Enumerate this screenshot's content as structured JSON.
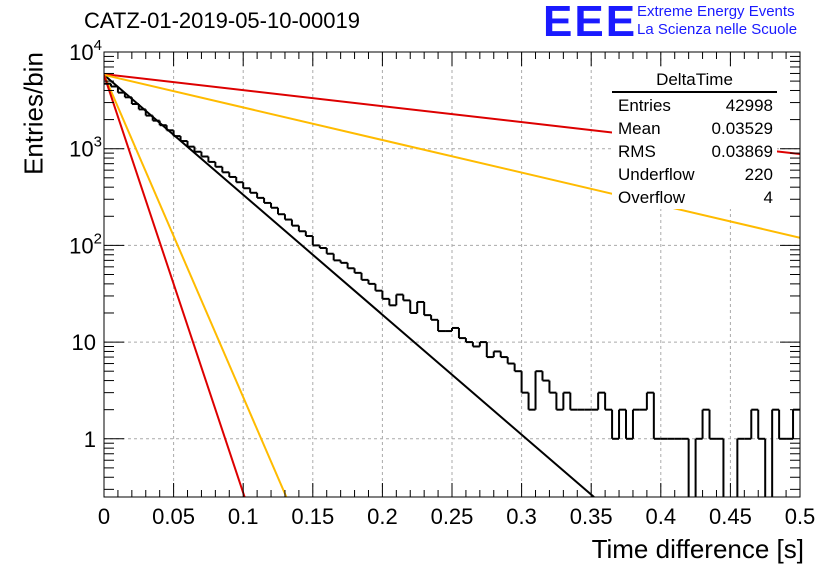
{
  "title": "CATZ-01-2019-05-10-00019",
  "logo": {
    "mark": "EEE",
    "line1": "Extreme Energy Events",
    "line2": "La Scienza nelle Scuole",
    "color": "#1a1aff"
  },
  "axes": {
    "xlabel": "Time difference [s]",
    "ylabel": "Entries/bin"
  },
  "stats": {
    "title": "DeltaTime",
    "rows": [
      {
        "label": "Entries",
        "value": "42998"
      },
      {
        "label": "Mean",
        "value": "0.03529"
      },
      {
        "label": "RMS",
        "value": "0.03869"
      },
      {
        "label": "Underflow",
        "value": "220"
      },
      {
        "label": "Overflow",
        "value": "4"
      }
    ]
  },
  "chart_data": {
    "type": "line",
    "xlim": [
      0,
      0.5
    ],
    "ylim": [
      0.25,
      10000
    ],
    "yscale": "log",
    "grid": true,
    "x_ticks": [
      "0",
      "0.05",
      "0.1",
      "0.15",
      "0.2",
      "0.25",
      "0.3",
      "0.35",
      "0.4",
      "0.45",
      "0.5"
    ],
    "y_ticks": [
      {
        "value": 1,
        "label": "1"
      },
      {
        "value": 10,
        "label": "10"
      },
      {
        "value": 100,
        "label": "10^2"
      },
      {
        "value": 1000,
        "label": "10^3"
      },
      {
        "value": 10000,
        "label": "10^4"
      }
    ],
    "histogram": {
      "name": "DeltaTime",
      "bin_width": 0.005,
      "x_start": 0,
      "color": "#000000",
      "counts": [
        4700,
        4400,
        3800,
        3400,
        2900,
        2550,
        2200,
        1950,
        1750,
        1550,
        1350,
        1200,
        1050,
        930,
        830,
        730,
        650,
        570,
        510,
        450,
        390,
        350,
        310,
        275,
        245,
        210,
        185,
        160,
        140,
        125,
        100,
        94,
        82,
        70,
        66,
        58,
        52,
        44,
        40,
        34,
        28,
        24,
        31,
        27,
        20,
        26,
        19,
        17,
        13,
        13,
        14,
        11,
        10,
        9,
        10,
        7,
        8,
        7,
        6,
        5,
        3,
        2,
        5,
        4,
        3,
        2,
        3,
        2,
        2,
        2,
        2,
        3,
        2,
        1,
        2,
        1,
        2,
        2,
        3,
        1,
        1,
        1,
        1,
        1,
        0,
        1,
        2,
        1,
        1,
        0,
        0,
        1,
        1,
        2,
        1,
        0,
        2,
        1,
        1,
        2
      ]
    },
    "series": [
      {
        "color": "#000000",
        "x": [
          0,
          0.352
        ],
        "y": [
          5800,
          0.25
        ]
      },
      {
        "color": "#dd0000",
        "x": [
          0,
          0.5
        ],
        "y": [
          5900,
          880
        ]
      },
      {
        "color": "#ffbb00",
        "x": [
          0,
          0.5
        ],
        "y": [
          5800,
          120
        ]
      },
      {
        "color": "#ffbb00",
        "x": [
          0,
          0.131
        ],
        "y": [
          5800,
          0.25
        ]
      },
      {
        "color": "#dd0000",
        "x": [
          0,
          0.101
        ],
        "y": [
          5800,
          0.25
        ]
      }
    ]
  }
}
